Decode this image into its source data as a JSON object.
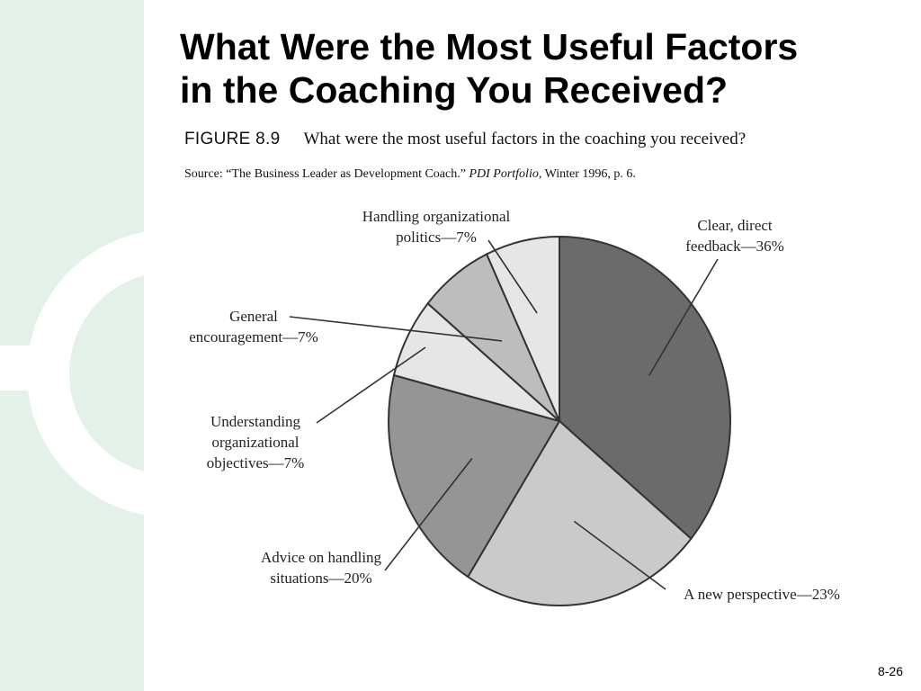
{
  "slide": {
    "title_line1": "What Were the Most Useful Factors",
    "title_line2": "in the Coaching You Received?",
    "page_number": "8-26"
  },
  "figure": {
    "label": "FIGURE 8.9",
    "question": "What were the most useful factors in the coaching you received?",
    "source_prefix": "Source: “The Business Leader as Development Coach.”",
    "source_publication": "PDI Portfolio,",
    "source_suffix": "Winter 1996, p. 6."
  },
  "colors": {
    "background_stripe": "#e3f1e8",
    "slice_outline": "#333333",
    "leader_line": "#333333"
  },
  "chart_data": {
    "type": "pie",
    "title": "What were the most useful factors in the coaching you received?",
    "start": "12 o'clock",
    "direction": "clockwise",
    "slices": [
      {
        "label_lines": [
          "Clear, direct",
          "feedback—36%"
        ],
        "value": 36,
        "color": "#6b6b6b"
      },
      {
        "label_lines": [
          "A new perspective—23%"
        ],
        "value": 23,
        "color": "#cacaca"
      },
      {
        "label_lines": [
          "Advice on handling",
          "situations—20%"
        ],
        "value": 20,
        "color": "#959595"
      },
      {
        "label_lines": [
          "Understanding",
          "organizational",
          "objectives—7%"
        ],
        "value": 7,
        "color": "#e6e6e6"
      },
      {
        "label_lines": [
          "General",
          "encouragement—7%"
        ],
        "value": 7,
        "color": "#bdbdbd"
      },
      {
        "label_lines": [
          "Handling organizational",
          "politics—7%"
        ],
        "value": 7,
        "color": "#e6e6e6"
      }
    ]
  }
}
